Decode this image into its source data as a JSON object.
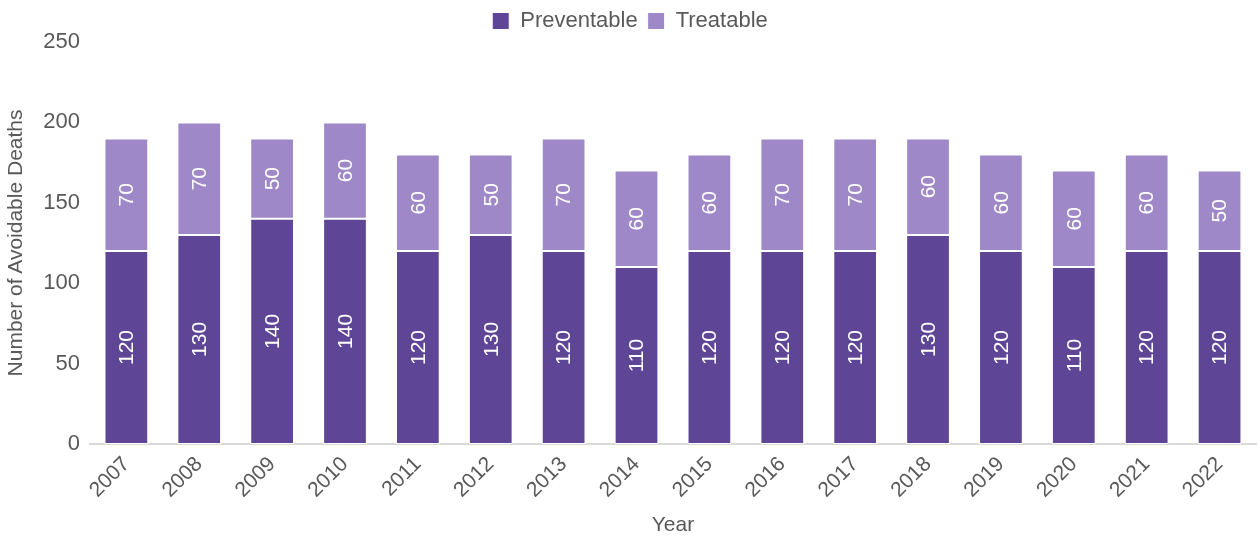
{
  "chart_data": {
    "type": "bar",
    "stacked": true,
    "xlabel": "Year",
    "ylabel": "Number of Avoidable Deaths",
    "categories": [
      "2007",
      "2008",
      "2009",
      "2010",
      "2011",
      "2012",
      "2013",
      "2014",
      "2015",
      "2016",
      "2017",
      "2018",
      "2019",
      "2020",
      "2021",
      "2022"
    ],
    "series": [
      {
        "name": "Preventable",
        "color": "#5e4596",
        "values": [
          120,
          130,
          140,
          140,
          120,
          130,
          120,
          110,
          120,
          120,
          120,
          130,
          120,
          110,
          120,
          120
        ]
      },
      {
        "name": "Treatable",
        "color": "#9e88c7",
        "values": [
          70,
          70,
          50,
          60,
          60,
          50,
          70,
          60,
          60,
          70,
          70,
          60,
          60,
          60,
          60,
          50
        ]
      }
    ],
    "ylim": [
      0,
      250
    ],
    "yticks": [
      0,
      50,
      100,
      150,
      200,
      250
    ],
    "grid": false,
    "legend": "top",
    "data_labels": true
  }
}
